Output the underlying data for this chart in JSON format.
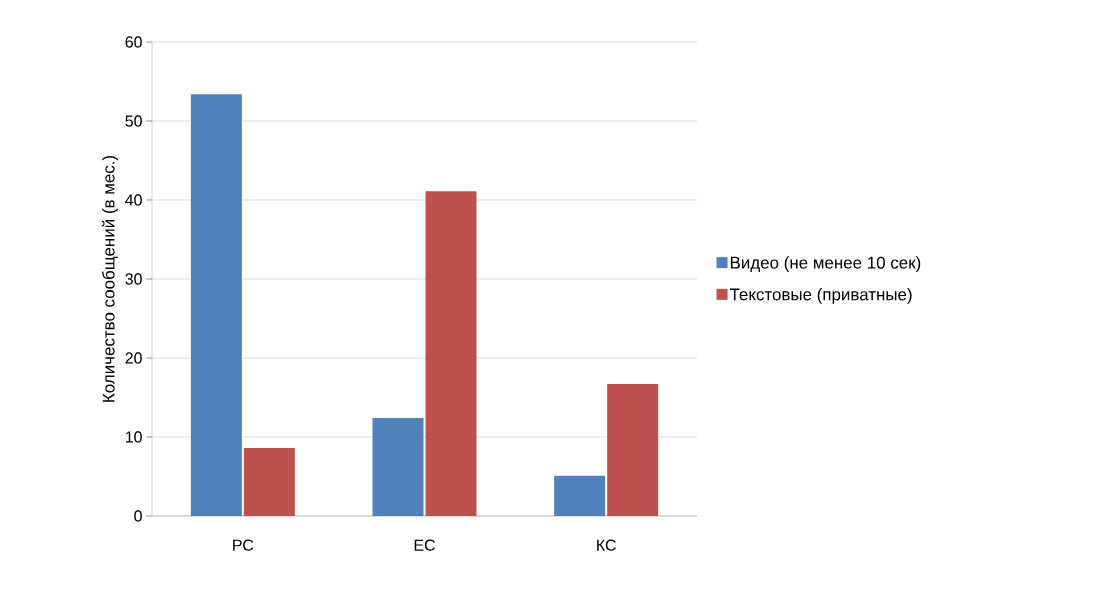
{
  "chart_data": {
    "type": "bar",
    "ylabel": "Количество сообщений (в мес.)",
    "categories": [
      "РС",
      "ЕС",
      "КС"
    ],
    "series": [
      {
        "name": "Видео (не менее 10 сек)",
        "color": "#4f81bd",
        "values": [
          53.4,
          12.4,
          5.1
        ]
      },
      {
        "name": "Текстовые (приватные)",
        "color": "#c0504d",
        "values": [
          8.6,
          41.1,
          16.7
        ]
      }
    ],
    "ylim": [
      0,
      60
    ],
    "yticks": [
      0,
      10,
      20,
      30,
      40,
      50,
      60
    ],
    "grid": "y",
    "legend": "right"
  }
}
